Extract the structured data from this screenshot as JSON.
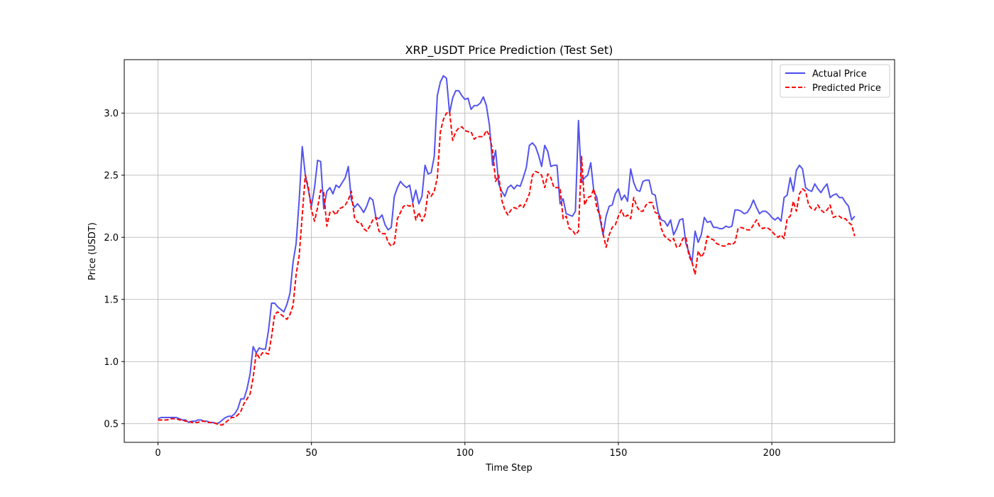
{
  "chart_data": {
    "type": "line",
    "title": "XRP_USDT Price Prediction (Test Set)",
    "xlabel": "Time Step",
    "ylabel": "Price (USDT)",
    "xlim": [
      -11,
      240
    ],
    "ylim": [
      0.35,
      3.43
    ],
    "xticks": [
      0,
      50,
      100,
      150,
      200
    ],
    "yticks": [
      0.5,
      1.0,
      1.5,
      2.0,
      2.5,
      3.0
    ],
    "xtick_labels": [
      "0",
      "50",
      "100",
      "150",
      "200"
    ],
    "ytick_labels": [
      "0.5",
      "1.0",
      "1.5",
      "2.0",
      "2.5",
      "3.0"
    ],
    "grid": true,
    "legend_position": "top-right",
    "series": [
      {
        "name": "Actual Price",
        "color": "#4a4aee",
        "style": "solid",
        "values": [
          0.54,
          0.55,
          0.55,
          0.55,
          0.55,
          0.55,
          0.55,
          0.54,
          0.53,
          0.53,
          0.51,
          0.52,
          0.52,
          0.53,
          0.53,
          0.52,
          0.52,
          0.51,
          0.51,
          0.5,
          0.51,
          0.53,
          0.55,
          0.56,
          0.56,
          0.58,
          0.62,
          0.7,
          0.7,
          0.78,
          0.9,
          1.12,
          1.07,
          1.11,
          1.1,
          1.1,
          1.25,
          1.47,
          1.47,
          1.44,
          1.42,
          1.4,
          1.46,
          1.55,
          1.8,
          1.95,
          2.3,
          2.73,
          2.5,
          2.38,
          2.25,
          2.4,
          2.62,
          2.61,
          2.23,
          2.37,
          2.4,
          2.35,
          2.42,
          2.4,
          2.44,
          2.48,
          2.57,
          2.3,
          2.24,
          2.27,
          2.24,
          2.2,
          2.25,
          2.32,
          2.3,
          2.16,
          2.15,
          2.18,
          2.1,
          2.06,
          2.08,
          2.33,
          2.4,
          2.45,
          2.42,
          2.4,
          2.42,
          2.28,
          2.38,
          2.27,
          2.33,
          2.58,
          2.51,
          2.52,
          2.65,
          3.14,
          3.25,
          3.3,
          3.28,
          3.0,
          3.12,
          3.18,
          3.18,
          3.14,
          3.11,
          3.12,
          3.03,
          3.06,
          3.06,
          3.08,
          3.13,
          3.06,
          2.9,
          2.58,
          2.7,
          2.43,
          2.37,
          2.33,
          2.4,
          2.42,
          2.39,
          2.42,
          2.41,
          2.48,
          2.56,
          2.74,
          2.76,
          2.73,
          2.66,
          2.57,
          2.74,
          2.69,
          2.57,
          2.58,
          2.58,
          2.27,
          2.31,
          2.19,
          2.18,
          2.17,
          2.21,
          2.94,
          2.44,
          2.48,
          2.5,
          2.6,
          2.37,
          2.32,
          2.15,
          2.02,
          2.17,
          2.25,
          2.26,
          2.35,
          2.39,
          2.3,
          2.34,
          2.29,
          2.55,
          2.44,
          2.38,
          2.37,
          2.45,
          2.46,
          2.46,
          2.35,
          2.34,
          2.2,
          2.14,
          2.13,
          2.09,
          2.14,
          2.02,
          2.07,
          2.14,
          2.15,
          1.95,
          1.88,
          1.8,
          2.05,
          1.96,
          2.02,
          2.16,
          2.12,
          2.13,
          2.08,
          2.08,
          2.07,
          2.07,
          2.09,
          2.08,
          2.09,
          2.22,
          2.22,
          2.21,
          2.19,
          2.2,
          2.24,
          2.3,
          2.24,
          2.19,
          2.21,
          2.21,
          2.19,
          2.16,
          2.14,
          2.16,
          2.13,
          2.32,
          2.34,
          2.48,
          2.37,
          2.54,
          2.58,
          2.55,
          2.4,
          2.38,
          2.37,
          2.43,
          2.39,
          2.36,
          2.4,
          2.43,
          2.32,
          2.34,
          2.35,
          2.32,
          2.32,
          2.28,
          2.25,
          2.14,
          2.17
        ]
      },
      {
        "name": "Predicted Price",
        "color": "#ff0000",
        "style": "dashed",
        "values": [
          0.53,
          0.53,
          0.53,
          0.53,
          0.54,
          0.54,
          0.54,
          0.53,
          0.53,
          0.52,
          0.52,
          0.51,
          0.51,
          0.51,
          0.52,
          0.52,
          0.51,
          0.51,
          0.51,
          0.5,
          0.49,
          0.49,
          0.51,
          0.53,
          0.55,
          0.55,
          0.57,
          0.6,
          0.66,
          0.7,
          0.74,
          0.87,
          1.07,
          1.03,
          1.07,
          1.07,
          1.06,
          1.2,
          1.38,
          1.4,
          1.38,
          1.36,
          1.34,
          1.38,
          1.45,
          1.7,
          1.85,
          2.18,
          2.5,
          2.4,
          2.22,
          2.13,
          2.24,
          2.38,
          2.36,
          2.09,
          2.2,
          2.21,
          2.18,
          2.23,
          2.24,
          2.26,
          2.3,
          2.37,
          2.16,
          2.12,
          2.12,
          2.07,
          2.05,
          2.09,
          2.14,
          2.16,
          2.05,
          2.03,
          2.03,
          1.96,
          1.93,
          1.95,
          2.15,
          2.2,
          2.25,
          2.26,
          2.25,
          2.27,
          2.14,
          2.2,
          2.13,
          2.18,
          2.37,
          2.33,
          2.37,
          2.48,
          2.85,
          2.95,
          3.0,
          3.01,
          2.78,
          2.85,
          2.88,
          2.89,
          2.86,
          2.85,
          2.85,
          2.79,
          2.81,
          2.81,
          2.81,
          2.86,
          2.82,
          2.7,
          2.45,
          2.5,
          2.3,
          2.22,
          2.18,
          2.22,
          2.24,
          2.23,
          2.26,
          2.24,
          2.29,
          2.35,
          2.5,
          2.53,
          2.52,
          2.5,
          2.4,
          2.51,
          2.48,
          2.4,
          2.4,
          2.4,
          2.15,
          2.17,
          2.07,
          2.06,
          2.02,
          2.05,
          2.65,
          2.26,
          2.32,
          2.33,
          2.39,
          2.23,
          2.18,
          2.03,
          1.92,
          2.02,
          2.08,
          2.1,
          2.17,
          2.22,
          2.16,
          2.18,
          2.15,
          2.32,
          2.25,
          2.21,
          2.21,
          2.26,
          2.28,
          2.28,
          2.2,
          2.19,
          2.07,
          2.01,
          1.99,
          1.97,
          1.99,
          1.92,
          1.93,
          1.99,
          2.0,
          1.85,
          1.8,
          1.7,
          1.89,
          1.84,
          1.88,
          2.01,
          1.99,
          1.98,
          1.95,
          1.94,
          1.93,
          1.93,
          1.95,
          1.94,
          1.96,
          2.07,
          2.08,
          2.07,
          2.06,
          2.06,
          2.1,
          2.14,
          2.09,
          2.07,
          2.08,
          2.07,
          2.05,
          2.02,
          2.0,
          2.02,
          1.99,
          2.15,
          2.17,
          2.29,
          2.21,
          2.35,
          2.39,
          2.37,
          2.26,
          2.23,
          2.22,
          2.26,
          2.22,
          2.2,
          2.22,
          2.26,
          2.16,
          2.17,
          2.17,
          2.15,
          2.15,
          2.12,
          2.1,
          2.01
        ]
      }
    ]
  }
}
